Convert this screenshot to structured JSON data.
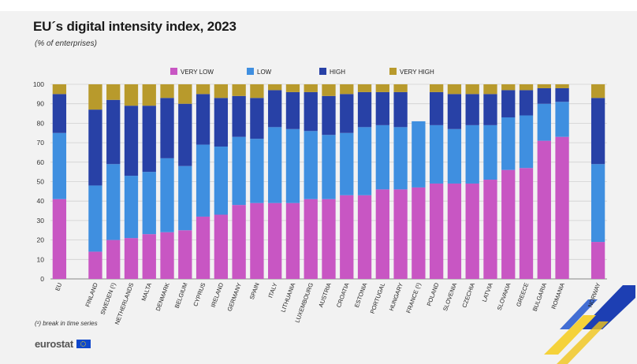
{
  "title": "EU´s digital intensity index, 2023",
  "subtitle": "(% of enterprises)",
  "footnote": "(¹) break in time series",
  "logo": "eurostat",
  "chart_data": {
    "type": "bar",
    "stacked": true,
    "categories": [
      "EU",
      "",
      "FINLAND",
      "SWEDEN (¹)",
      "NETHERLANDS",
      "MALTA",
      "DENMARK",
      "BELGIUM",
      "CYPRUS",
      "IRELAND",
      "GERMANY",
      "SPAIN",
      "ITALY",
      "LITHUANIA",
      "LUXEMBOURG",
      "AUSTRIA",
      "CROATIA",
      "ESTONIA",
      "PORTUGAL",
      "HUNGARY",
      "FRANCE (¹)",
      "POLAND",
      "SLOVENIA",
      "CZECHIA",
      "LATVIA",
      "SLOVAKIA",
      "GREECE",
      "BULGARIA",
      "ROMANIA",
      "",
      "NORWAY"
    ],
    "series": [
      {
        "name": "VERY LOW",
        "color": "#c856c3",
        "values": [
          41,
          null,
          14,
          20,
          21,
          23,
          24,
          25,
          32,
          33,
          38,
          39,
          39,
          39,
          41,
          41,
          43,
          43,
          46,
          46,
          47,
          49,
          49,
          49,
          51,
          56,
          57,
          71,
          73,
          null,
          19
        ]
      },
      {
        "name": "LOW",
        "color": "#3f8fe0",
        "values": [
          34,
          null,
          34,
          39,
          32,
          32,
          38,
          33,
          37,
          35,
          35,
          33,
          39,
          38,
          35,
          33,
          32,
          35,
          33,
          32,
          34,
          30,
          28,
          30,
          28,
          27,
          27,
          19,
          18,
          null,
          40
        ]
      },
      {
        "name": "HIGH",
        "color": "#2841a6",
        "values": [
          20,
          null,
          39,
          33,
          36,
          34,
          31,
          32,
          26,
          25,
          21,
          21,
          19,
          19,
          20,
          20,
          20,
          18,
          17,
          18,
          0,
          17,
          18,
          16,
          16,
          14,
          13,
          8,
          7,
          null,
          34
        ]
      },
      {
        "name": "VERY HIGH",
        "color": "#b89a2c",
        "values": [
          5,
          null,
          13,
          8,
          11,
          11,
          7,
          10,
          5,
          7,
          6,
          7,
          3,
          4,
          4,
          6,
          5,
          4,
          4,
          4,
          0,
          4,
          5,
          5,
          5,
          3,
          3,
          2,
          2,
          null,
          7
        ]
      }
    ],
    "ylim": [
      0,
      100
    ],
    "yticks": [
      0,
      10,
      20,
      30,
      40,
      50,
      60,
      70,
      80,
      90,
      100
    ],
    "grid": true,
    "legend_position": "top"
  }
}
